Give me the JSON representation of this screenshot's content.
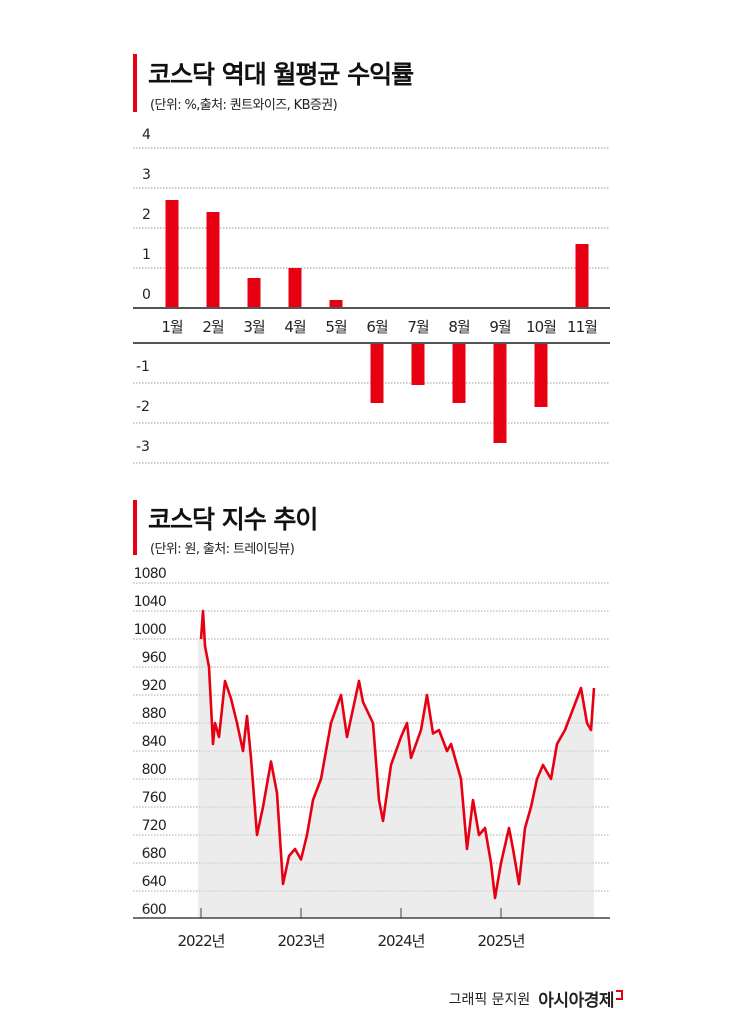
{
  "charts": {
    "bar": {
      "title": "코스닥 역대 월평균 수익률",
      "subtitle": "(단위: %,출처: 퀀트와이즈, KB증권)"
    },
    "line": {
      "title": "코스닥 지수 추이",
      "subtitle": "(단위: 원, 출처: 트레이딩뷰)"
    }
  },
  "credit": {
    "designer": "그래픽 문지원",
    "brand": "아시아경제"
  },
  "colors": {
    "accent": "#e60012",
    "fill": "#ececec",
    "grid": "#9a9a9a",
    "axis": "#444444"
  },
  "chart_data": [
    {
      "type": "bar",
      "title": "코스닥 역대 월평균 수익률",
      "subtitle": "(단위: %,출처: 퀀트와이즈, KB증권)",
      "xlabel": "",
      "ylabel": "%",
      "categories": [
        "1월",
        "2월",
        "3월",
        "4월",
        "5월",
        "6월",
        "7월",
        "8월",
        "9월",
        "10월",
        "11월"
      ],
      "values": [
        2.7,
        2.4,
        0.75,
        1.0,
        0.2,
        -1.5,
        -1.05,
        -1.5,
        -2.5,
        -1.6,
        1.6
      ],
      "yticks_positive": [
        "4",
        "3",
        "2",
        "1",
        "0"
      ],
      "yticks_negative": [
        "-1",
        "-2",
        "-3"
      ],
      "ylim": [
        -3,
        4
      ],
      "grid": true,
      "legend": "none"
    },
    {
      "type": "line",
      "title": "코스닥 지수 추이",
      "subtitle": "(단위: 원, 출처: 트레이딩뷰)",
      "xlabel": "",
      "ylabel": "원",
      "x_ticks": [
        "2022년",
        "2023년",
        "2024년",
        "2025년"
      ],
      "yticks": [
        "1080",
        "1040",
        "1000",
        "960",
        "920",
        "880",
        "840",
        "800",
        "760",
        "720",
        "680",
        "640",
        "600"
      ],
      "ylim": [
        600,
        1080
      ],
      "grid": true,
      "legend": "none",
      "series": [
        {
          "name": "코스닥 지수",
          "x": [
            2022.0,
            2022.02,
            2022.04,
            2022.08,
            2022.12,
            2022.14,
            2022.18,
            2022.24,
            2022.3,
            2022.36,
            2022.42,
            2022.46,
            2022.5,
            2022.56,
            2022.62,
            2022.7,
            2022.76,
            2022.82,
            2022.88,
            2022.94,
            2023.0,
            2023.06,
            2023.12,
            2023.2,
            2023.3,
            2023.4,
            2023.46,
            2023.52,
            2023.58,
            2023.62,
            2023.72,
            2023.78,
            2023.82,
            2023.9,
            2024.0,
            2024.06,
            2024.1,
            2024.2,
            2024.26,
            2024.32,
            2024.38,
            2024.46,
            2024.5,
            2024.6,
            2024.66,
            2024.72,
            2024.78,
            2024.84,
            2024.9,
            2024.94,
            2025.0,
            2025.08,
            2025.12,
            2025.18,
            2025.24,
            2025.3,
            2025.36,
            2025.42,
            2025.5,
            2025.56,
            2025.64,
            2025.72,
            2025.8,
            2025.86,
            2025.9,
            2025.93
          ],
          "values": [
            1000,
            1040,
            990,
            960,
            850,
            880,
            860,
            940,
            915,
            880,
            840,
            890,
            830,
            720,
            760,
            825,
            780,
            650,
            690,
            700,
            685,
            720,
            770,
            800,
            880,
            920,
            860,
            900,
            940,
            910,
            880,
            770,
            740,
            820,
            860,
            880,
            830,
            870,
            920,
            865,
            870,
            840,
            850,
            800,
            700,
            770,
            720,
            730,
            680,
            630,
            680,
            730,
            700,
            650,
            730,
            760,
            800,
            820,
            800,
            850,
            870,
            900,
            930,
            880,
            870,
            930
          ]
        }
      ]
    }
  ]
}
